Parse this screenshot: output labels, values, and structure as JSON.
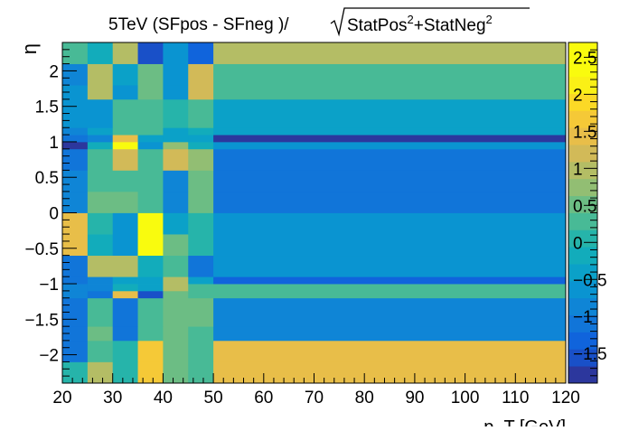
{
  "chart_data": {
    "type": "heatmap",
    "title_main": "5TeV (SFpos - SFneg )/",
    "title_sqrt": "StatPos",
    "title_exp1": "2",
    "title_mid": "+StatNeg",
    "title_exp2": "2",
    "xlabel": "p_T [GeV]",
    "ylabel": "η",
    "xlim": [
      20,
      120
    ],
    "ylim": [
      -2.4,
      2.4
    ],
    "zlim": [
      -1.9,
      2.7
    ],
    "x_ticks": [
      {
        "value": 20,
        "label": "20"
      },
      {
        "value": 30,
        "label": "30"
      },
      {
        "value": 40,
        "label": "40"
      },
      {
        "value": 50,
        "label": "50"
      },
      {
        "value": 60,
        "label": "60"
      },
      {
        "value": 70,
        "label": "70"
      },
      {
        "value": 80,
        "label": "80"
      },
      {
        "value": 90,
        "label": "90"
      },
      {
        "value": 100,
        "label": "100"
      },
      {
        "value": 110,
        "label": "110"
      },
      {
        "value": 120,
        "label": "120"
      }
    ],
    "y_ticks": [
      {
        "value": 2,
        "label": "2"
      },
      {
        "value": 1.5,
        "label": "1.5"
      },
      {
        "value": 1,
        "label": "1"
      },
      {
        "value": 0.5,
        "label": "0.5"
      },
      {
        "value": 0,
        "label": "0"
      },
      {
        "value": -0.5,
        "label": "−0.5"
      },
      {
        "value": -1,
        "label": "−1"
      },
      {
        "value": -1.5,
        "label": "−1.5"
      },
      {
        "value": -2,
        "label": "−2"
      }
    ],
    "z_ticks": [
      {
        "value": 2.5,
        "label": "2.5"
      },
      {
        "value": 2,
        "label": "2"
      },
      {
        "value": 1.5,
        "label": "1.5"
      },
      {
        "value": 1,
        "label": "1"
      },
      {
        "value": 0.5,
        "label": "0.5"
      },
      {
        "value": 0,
        "label": "0"
      },
      {
        "value": -0.5,
        "label": "−0.5"
      },
      {
        "value": -1,
        "label": "−1"
      },
      {
        "value": -1.5,
        "label": "−1.5"
      }
    ],
    "x_edges": [
      20,
      25,
      30,
      35,
      40,
      45,
      50,
      120
    ],
    "y_edges": [
      -2.4,
      -2.1,
      -1.8,
      -1.6,
      -1.2,
      -1.1,
      -1.0,
      -0.9,
      -0.6,
      -0.3,
      0,
      0.3,
      0.6,
      0.9,
      1.0,
      1.1,
      1.2,
      1.6,
      1.8,
      2.1,
      2.4
    ],
    "values": [
      [
        0.0,
        0.9,
        0.0,
        1.6,
        0.5,
        0.3,
        1.5
      ],
      [
        -1.1,
        0.3,
        0.1,
        1.6,
        0.6,
        0.3,
        1.5
      ],
      [
        -1.0,
        0.5,
        -1.2,
        0.2,
        0.6,
        0.3,
        -0.9
      ],
      [
        -1.0,
        0.2,
        -1.2,
        0.2,
        0.6,
        0.4,
        -0.9
      ],
      [
        -0.9,
        -1.0,
        1.5,
        -1.5,
        0.4,
        0.2,
        0.2
      ],
      [
        -0.9,
        -0.9,
        -0.2,
        -0.3,
        1.0,
        0.2,
        0.2
      ],
      [
        -1.1,
        -0.9,
        -0.5,
        -0.5,
        0.9,
        -0.4,
        -1.4
      ],
      [
        -1.0,
        1.0,
        1.0,
        -0.1,
        0.3,
        -1.2,
        -0.7
      ],
      [
        1.5,
        -0.2,
        -0.6,
        2.7,
        0.4,
        0.1,
        -0.7
      ],
      [
        1.5,
        0.0,
        -0.6,
        2.7,
        -0.5,
        0.1,
        -0.7
      ],
      [
        -0.8,
        0.4,
        0.4,
        0.2,
        -0.9,
        0.4,
        -1.0
      ],
      [
        -0.8,
        0.3,
        0.3,
        0.2,
        -0.8,
        0.4,
        -1.0
      ],
      [
        -1.0,
        0.2,
        1.2,
        0.2,
        1.3,
        0.8,
        -1.1
      ],
      [
        -1.8,
        -0.1,
        2.7,
        -0.7,
        0.7,
        -0.2,
        -0.7
      ],
      [
        -1.0,
        -0.8,
        1.5,
        -0.3,
        -0.5,
        -0.4,
        -1.7
      ],
      [
        -0.8,
        -0.3,
        0.2,
        0.2,
        -0.3,
        -0.1,
        -0.5
      ],
      [
        -0.7,
        -0.6,
        0.2,
        0.3,
        0.1,
        0.3,
        -0.5
      ],
      [
        -0.7,
        0.9,
        -0.6,
        0.6,
        -0.6,
        1.2,
        0.2
      ],
      [
        -0.9,
        0.9,
        -0.5,
        0.6,
        -0.6,
        1.2,
        0.2
      ],
      [
        0.3,
        -0.2,
        1.0,
        -1.5,
        -0.7,
        -1.4,
        1.0
      ]
    ]
  }
}
